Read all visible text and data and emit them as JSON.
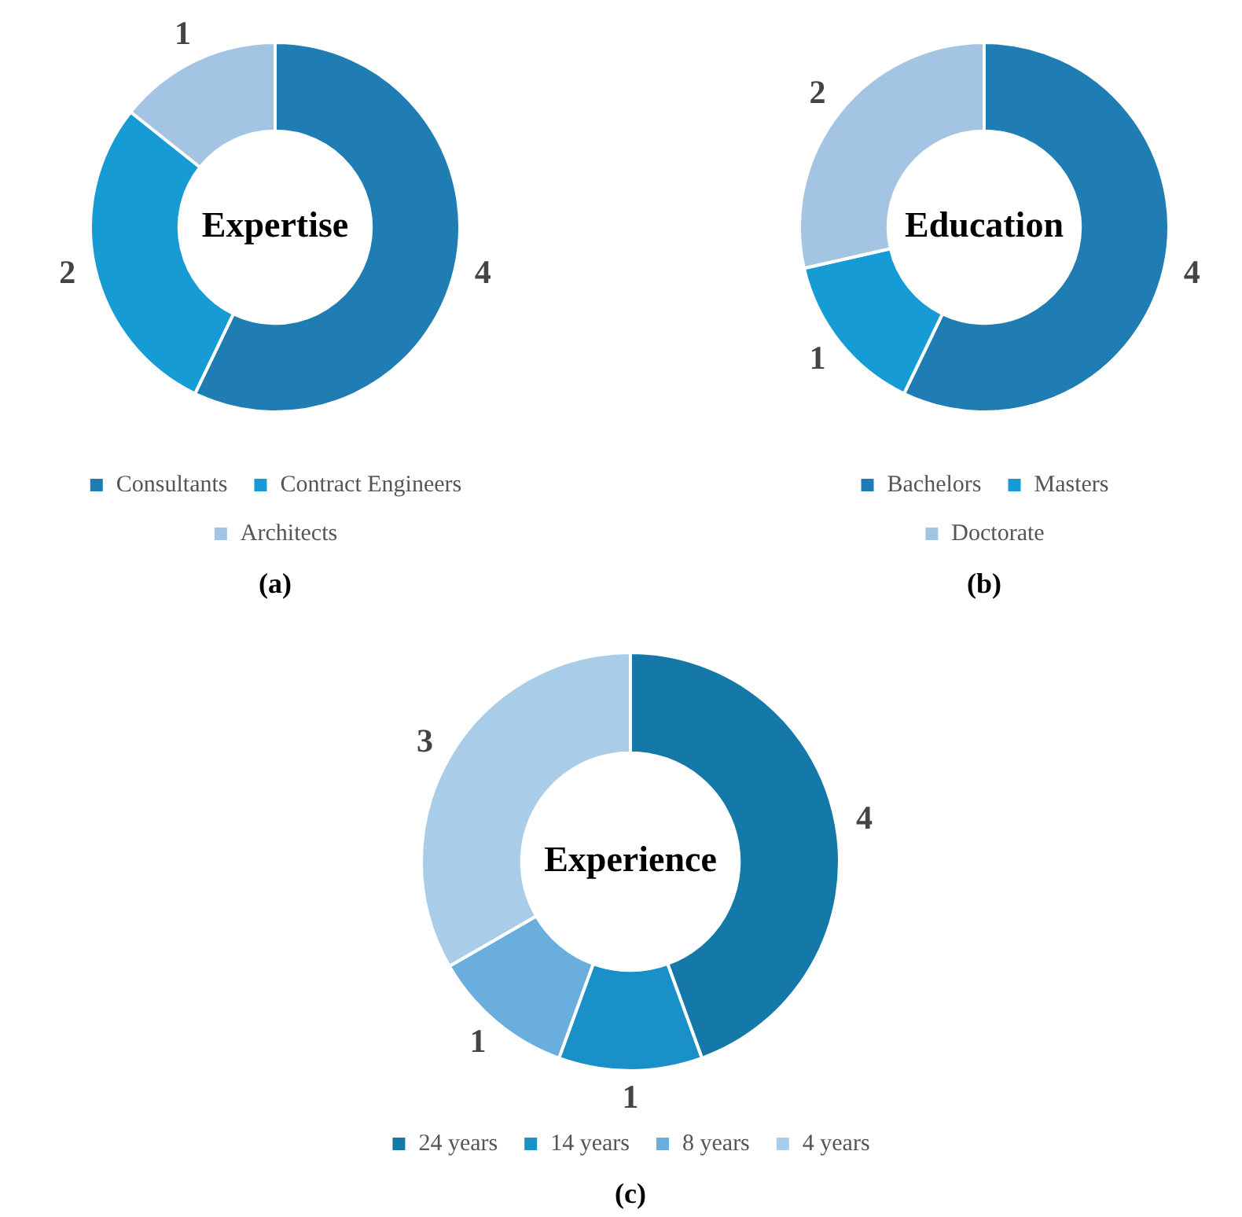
{
  "chart_data": [
    {
      "type": "donut",
      "title": "Expertise",
      "categories": [
        "Consultants",
        "Contract Engineers",
        "Architects"
      ],
      "values": [
        4,
        2,
        1
      ],
      "colors": [
        "#1f7db3",
        "#169bd5",
        "#a3c5e3"
      ],
      "data_labels": true,
      "legend": "bottom",
      "annotations": [
        "(a)"
      ]
    },
    {
      "type": "donut",
      "title": "Education",
      "categories": [
        "Bachelors",
        "Masters",
        "Doctorate"
      ],
      "values": [
        4,
        1,
        2
      ],
      "colors": [
        "#1f7db3",
        "#169bd5",
        "#a3c5e3"
      ],
      "data_labels": true,
      "legend": "bottom",
      "annotations": [
        "(b)"
      ]
    },
    {
      "type": "donut",
      "title": "Experience",
      "categories": [
        "24 years",
        "14 years",
        "8 years",
        "4 years"
      ],
      "values": [
        4,
        1,
        1,
        3
      ],
      "colors": [
        "#1479a8",
        "#1a90c8",
        "#6aaede",
        "#a9cde9"
      ],
      "data_labels": true,
      "legend": "bottom",
      "annotations": [
        "(c)"
      ]
    }
  ]
}
